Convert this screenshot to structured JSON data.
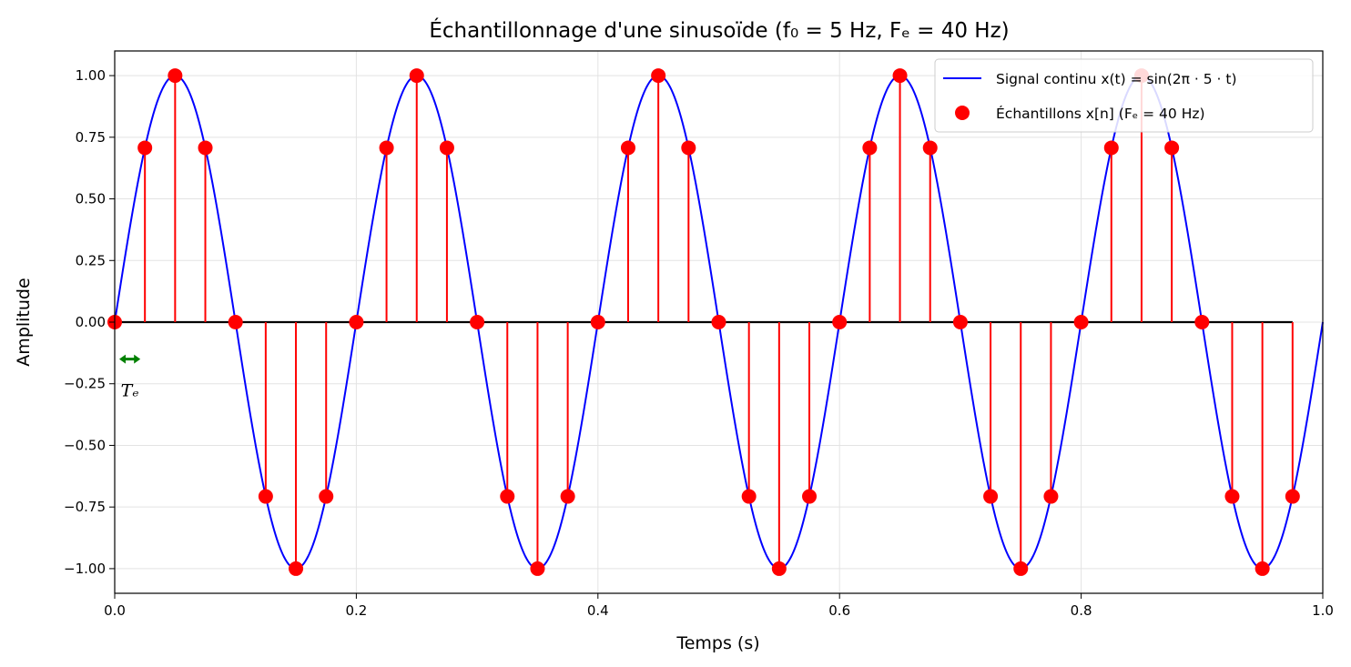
{
  "chart_data": {
    "type": "line",
    "title": "Échantillonnage d'une sinusoïde (f₀ = 5 Hz, Fₑ = 40 Hz)",
    "xlabel": "Temps (s)",
    "ylabel": "Amplitude",
    "xlim": [
      0,
      1
    ],
    "ylim": [
      -1.1,
      1.1
    ],
    "xticks": [
      0,
      0.2,
      0.4,
      0.6,
      0.8,
      1.0
    ],
    "xtick_labels": [
      "0.0",
      "0.2",
      "0.4",
      "0.6",
      "0.8",
      "1.0"
    ],
    "yticks": [
      -1.0,
      -0.75,
      -0.5,
      -0.25,
      0.0,
      0.25,
      0.5,
      0.75,
      1.0
    ],
    "ytick_labels": [
      "−1.00",
      "−0.75",
      "−0.50",
      "−0.25",
      "0.00",
      "0.25",
      "0.50",
      "0.75",
      "1.00"
    ],
    "grid": true,
    "legend_position": "top-right",
    "series": [
      {
        "name": "Signal continu x(t) = sin(2π · 5 · t)",
        "kind": "line",
        "color": "#0000ff",
        "function": "sin(2*pi*5*t)",
        "frequency_hz": 5,
        "t_range": [
          0,
          1
        ]
      },
      {
        "name": "Échantillons x[n] (Fₑ = 40 Hz)",
        "kind": "stem",
        "color": "#ff0000",
        "x": [
          0,
          0.025,
          0.05,
          0.075,
          0.1,
          0.125,
          0.15,
          0.175,
          0.2,
          0.225,
          0.25,
          0.275,
          0.3,
          0.325,
          0.35,
          0.375,
          0.4,
          0.425,
          0.45,
          0.475,
          0.5,
          0.525,
          0.55,
          0.575,
          0.6,
          0.625,
          0.65,
          0.675,
          0.7,
          0.725,
          0.75,
          0.775,
          0.8,
          0.825,
          0.85,
          0.875,
          0.9,
          0.925,
          0.95,
          0.975
        ],
        "y": [
          0,
          0.707,
          1,
          0.707,
          0,
          -0.707,
          -1,
          -0.707,
          0,
          0.707,
          1,
          0.707,
          0,
          -0.707,
          -1,
          -0.707,
          0,
          0.707,
          1,
          0.707,
          0,
          -0.707,
          -1,
          -0.707,
          0,
          0.707,
          1,
          0.707,
          0,
          -0.707,
          -1,
          -0.707,
          0,
          0.707,
          1,
          0.707,
          0,
          -0.707,
          -1,
          -0.707
        ]
      }
    ],
    "baseline": {
      "y": 0,
      "x_range": [
        0,
        0.975
      ],
      "color": "#000000"
    },
    "annotations": [
      {
        "text": "Tₑ",
        "type": "double-arrow",
        "x_range": [
          0,
          0.025
        ],
        "y": -0.15,
        "color": "#008000"
      }
    ]
  }
}
